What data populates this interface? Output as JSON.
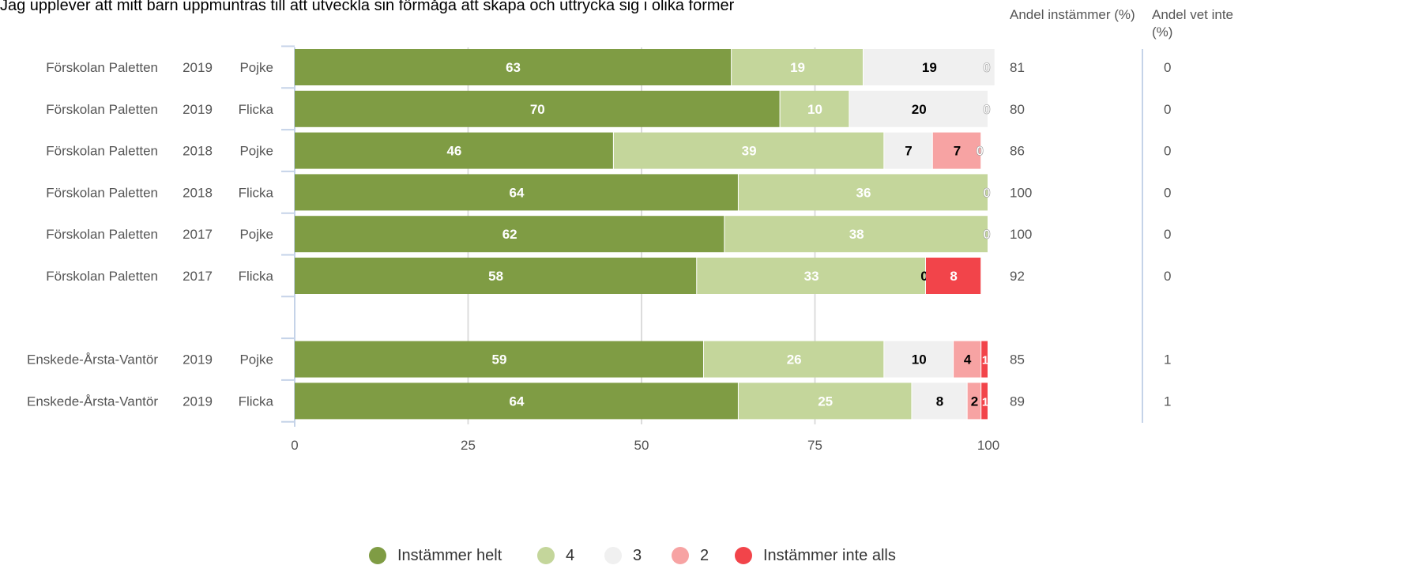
{
  "chart_data": {
    "type": "bar",
    "stacked": true,
    "orientation": "horizontal",
    "title": "Jag upplever att mitt barn uppmuntras till att utveckla sin förmåga att skapa och uttrycka sig i olika former",
    "xlim": [
      0,
      100
    ],
    "x_ticks": [
      "0",
      "25",
      "50",
      "75",
      "100"
    ],
    "grid": true,
    "legend_position": "bottom",
    "column_headers": {
      "andel_instammer": "Andel instämmer (%)",
      "andel_vet_inte": "Andel vet inte (%)"
    },
    "series": [
      {
        "name": "Instämmer helt",
        "color": "#7f9c44"
      },
      {
        "name": "4",
        "color": "#c4d69b"
      },
      {
        "name": "3",
        "color": "#f0f0f0"
      },
      {
        "name": "2",
        "color": "#f7a3a3"
      },
      {
        "name": "Instämmer inte alls",
        "color": "#f2444a"
      }
    ],
    "rows": [
      {
        "unit": "Förskolan Paletten",
        "year": "2019",
        "gender": "Pojke",
        "values": [
          63,
          19,
          19,
          0,
          0
        ],
        "labels": [
          "63",
          "19",
          "19",
          "0",
          ""
        ],
        "andel_instammer": "81",
        "andel_vet_inte": "0"
      },
      {
        "unit": "Förskolan Paletten",
        "year": "2019",
        "gender": "Flicka",
        "values": [
          70,
          10,
          20,
          0,
          0
        ],
        "labels": [
          "70",
          "10",
          "20",
          "0",
          ""
        ],
        "andel_instammer": "80",
        "andel_vet_inte": "0"
      },
      {
        "unit": "Förskolan Paletten",
        "year": "2018",
        "gender": "Pojke",
        "values": [
          46,
          39,
          7,
          7,
          0
        ],
        "labels": [
          "46",
          "39",
          "7",
          "7",
          "0"
        ],
        "andel_instammer": "86",
        "andel_vet_inte": "0"
      },
      {
        "unit": "Förskolan Paletten",
        "year": "2018",
        "gender": "Flicka",
        "values": [
          64,
          36,
          0,
          0,
          0
        ],
        "labels": [
          "64",
          "36",
          "0",
          "",
          ""
        ],
        "andel_instammer": "100",
        "andel_vet_inte": "0"
      },
      {
        "unit": "Förskolan Paletten",
        "year": "2017",
        "gender": "Pojke",
        "values": [
          62,
          38,
          0,
          0,
          0
        ],
        "labels": [
          "62",
          "38",
          "0",
          "",
          ""
        ],
        "andel_instammer": "100",
        "andel_vet_inte": "0"
      },
      {
        "unit": "Förskolan Paletten",
        "year": "2017",
        "gender": "Flicka",
        "values": [
          58,
          33,
          0,
          0,
          8
        ],
        "labels": [
          "58",
          "33",
          "",
          "0",
          "8"
        ],
        "andel_instammer": "92",
        "andel_vet_inte": "0"
      },
      {
        "gap": true
      },
      {
        "unit": "Enskede-Årsta-Vantör",
        "year": "2019",
        "gender": "Pojke",
        "values": [
          59,
          26,
          10,
          4,
          1
        ],
        "labels": [
          "59",
          "26",
          "10",
          "4",
          "1"
        ],
        "andel_instammer": "85",
        "andel_vet_inte": "1"
      },
      {
        "unit": "Enskede-Årsta-Vantör",
        "year": "2019",
        "gender": "Flicka",
        "values": [
          64,
          25,
          8,
          2,
          1
        ],
        "labels": [
          "64",
          "25",
          "8",
          "2",
          "1"
        ],
        "andel_instammer": "89",
        "andel_vet_inte": "1"
      }
    ]
  }
}
